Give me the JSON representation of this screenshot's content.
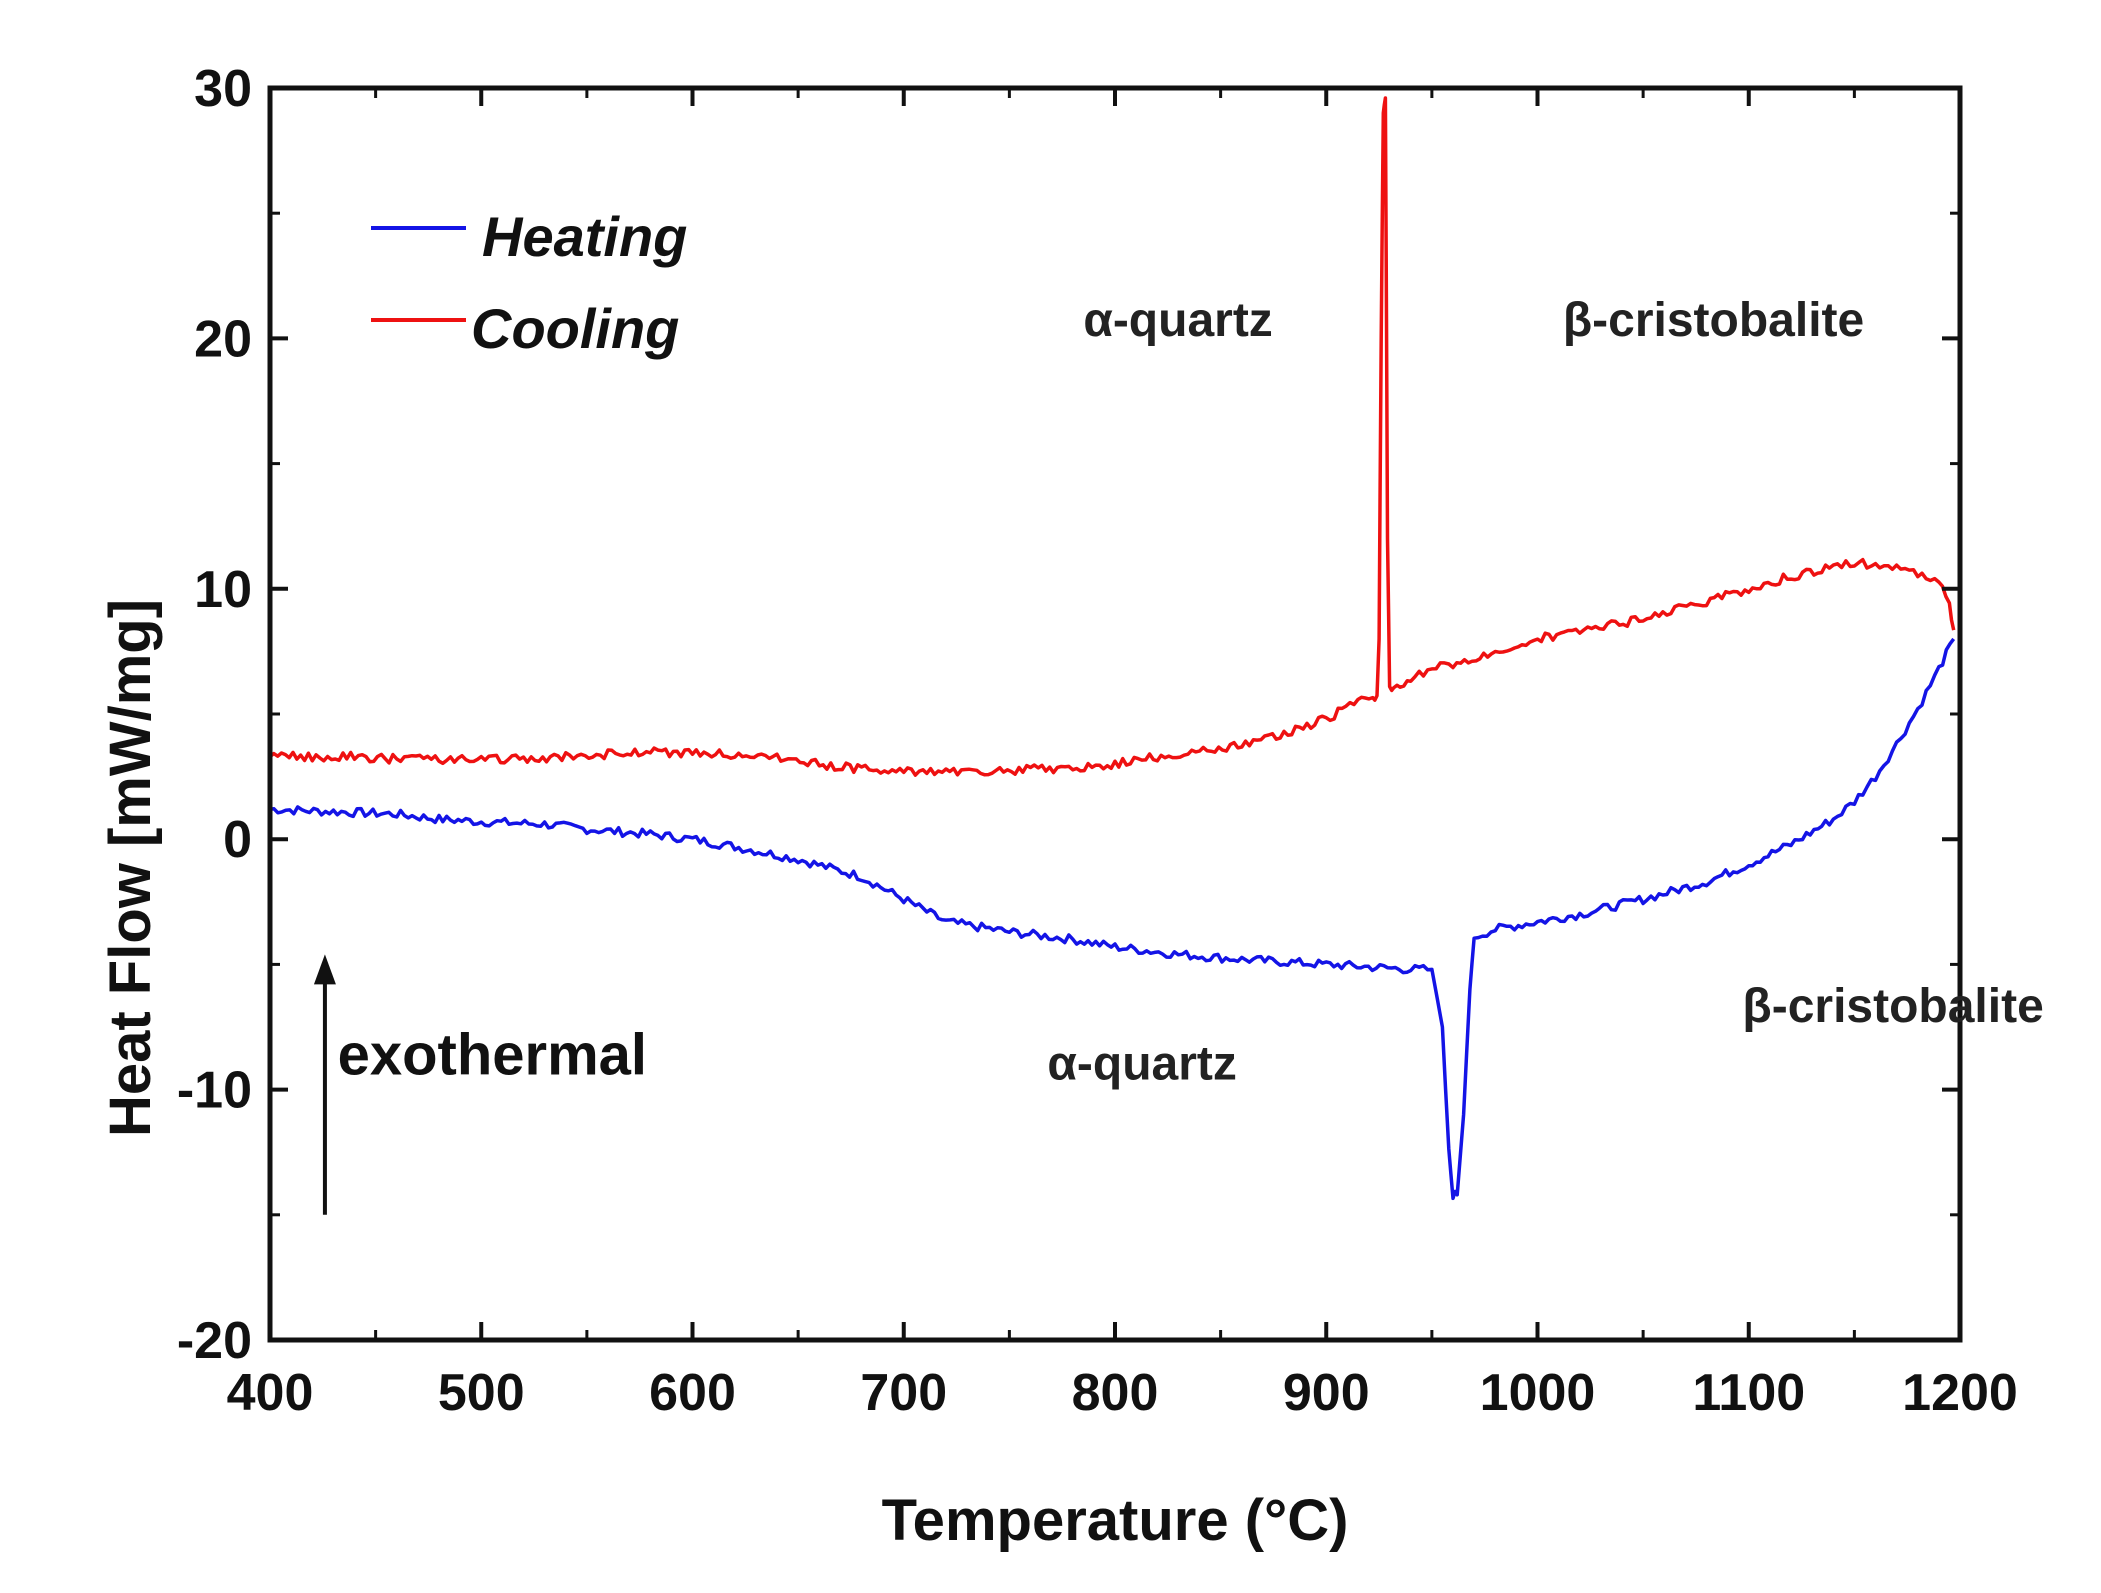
{
  "chart_data": {
    "type": "line",
    "title": "",
    "xlabel": "Temperature (°C)",
    "ylabel": "Heat Flow [mW/mg]",
    "xlim": [
      400,
      1200
    ],
    "ylim": [
      -20,
      30
    ],
    "xticks": [
      400,
      500,
      600,
      700,
      800,
      900,
      1000,
      1100,
      1200
    ],
    "yticks": [
      -20,
      -10,
      0,
      10,
      20,
      30
    ],
    "xtick_labels": [
      "400",
      "500",
      "600",
      "700",
      "800",
      "900",
      "1000",
      "1100",
      "1200"
    ],
    "ytick_labels": [
      "-20",
      "-10",
      "0",
      "10",
      "20",
      "30"
    ],
    "legend": {
      "placement": "top-left",
      "entries": [
        "Heating",
        "Cooling"
      ]
    },
    "series": [
      {
        "name": "Heating",
        "color": "#1414e6",
        "x": [
          400,
          430,
          460,
          480,
          500,
          530,
          550,
          580,
          600,
          620,
          650,
          680,
          700,
          720,
          750,
          780,
          800,
          830,
          860,
          880,
          900,
          920,
          940,
          950,
          955,
          958,
          960,
          962,
          965,
          968,
          970,
          980,
          1000,
          1020,
          1050,
          1080,
          1100,
          1120,
          1140,
          1150,
          1160,
          1170,
          1180,
          1190,
          1197
        ],
        "y": [
          1.2,
          1.1,
          1.0,
          0.8,
          0.7,
          0.6,
          0.4,
          0.2,
          0.0,
          -0.3,
          -0.8,
          -1.5,
          -2.4,
          -3.3,
          -3.7,
          -4.0,
          -4.3,
          -4.6,
          -4.8,
          -4.9,
          -5.0,
          -5.1,
          -5.2,
          -5.2,
          -7.5,
          -12.5,
          -14.2,
          -14.2,
          -11.0,
          -6.0,
          -3.9,
          -3.6,
          -3.3,
          -3.0,
          -2.4,
          -1.7,
          -1.0,
          -0.2,
          0.8,
          1.5,
          2.5,
          3.8,
          5.2,
          6.8,
          8.0
        ]
      },
      {
        "name": "Cooling",
        "color": "#ee1111",
        "x": [
          1197,
          1195,
          1190,
          1180,
          1170,
          1160,
          1150,
          1140,
          1120,
          1100,
          1080,
          1050,
          1020,
          1000,
          980,
          960,
          950,
          940,
          935,
          932,
          930,
          929,
          928,
          927,
          926,
          925,
          924,
          922,
          915,
          900,
          880,
          860,
          840,
          820,
          800,
          780,
          760,
          740,
          720,
          700,
          680,
          660,
          640,
          620,
          600,
          580,
          560,
          540,
          520,
          500,
          480,
          460,
          440,
          420,
          400
        ],
        "y": [
          8.2,
          9.5,
          10.2,
          10.6,
          10.9,
          11.0,
          11.0,
          10.9,
          10.5,
          10.0,
          9.5,
          8.8,
          8.3,
          8.0,
          7.5,
          7.0,
          6.8,
          6.4,
          6.2,
          6.0,
          6.1,
          12.0,
          29.5,
          29.0,
          20.0,
          8.0,
          5.6,
          5.6,
          5.5,
          4.8,
          4.2,
          3.8,
          3.5,
          3.3,
          3.0,
          2.8,
          2.8,
          2.7,
          2.7,
          2.7,
          2.8,
          3.0,
          3.3,
          3.4,
          3.4,
          3.5,
          3.4,
          3.3,
          3.2,
          3.2,
          3.2,
          3.2,
          3.3,
          3.3,
          3.3
        ]
      }
    ],
    "annotations": [
      {
        "id": "cooling_alpha",
        "text": "α-quartz",
        "x": 785,
        "y": 20.1,
        "color": "#222222"
      },
      {
        "id": "cooling_beta",
        "text": "β-cristobalite",
        "x": 1012,
        "y": 20.1,
        "color": "#222222"
      },
      {
        "id": "heating_alpha",
        "text": "α-quartz",
        "x": 768,
        "y": -9.6,
        "color": "#222222"
      },
      {
        "id": "heating_beta",
        "text": "β-cristobalite",
        "x": 1097,
        "y": -7.3,
        "color": "#222222"
      },
      {
        "id": "exothermal",
        "text": "exothermal",
        "x": 432,
        "y": -9.4,
        "color": "#111111"
      }
    ],
    "exothermal_arrow": {
      "x": 426,
      "y_from": -15,
      "y_to": -4.6,
      "color": "#111111"
    }
  }
}
